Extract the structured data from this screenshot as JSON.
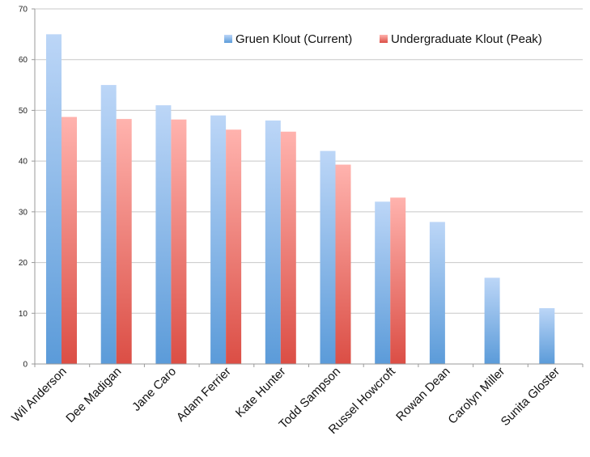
{
  "chart_data": {
    "type": "bar",
    "title": "",
    "xlabel": "",
    "ylabel": "",
    "categories": [
      "Wil Anderson",
      "Dee Madigan",
      "Jane Caro",
      "Adam Ferrier",
      "Kate Hunter",
      "Todd Sampson",
      "Russel Howcroft",
      "Rowan Dean",
      "Carolyn Miller",
      "Sunita Gloster"
    ],
    "series": [
      {
        "name": "Gruen Klout (Current)",
        "color": "#5b9bd9",
        "color_light": "#bcd6f7",
        "values": [
          65,
          55,
          51,
          49,
          48,
          42,
          32,
          28,
          17,
          11
        ]
      },
      {
        "name": "Undergraduate Klout (Peak)",
        "color": "#db4e45",
        "color_light": "#ffb3ae",
        "values": [
          48.7,
          48.3,
          48.2,
          46.2,
          45.8,
          39.3,
          32.8,
          null,
          null,
          null
        ]
      }
    ],
    "ylim": [
      0,
      70
    ],
    "yticks": [
      0,
      10,
      20,
      30,
      40,
      50,
      60,
      70
    ],
    "grid": true,
    "legend_position": "top-right"
  }
}
